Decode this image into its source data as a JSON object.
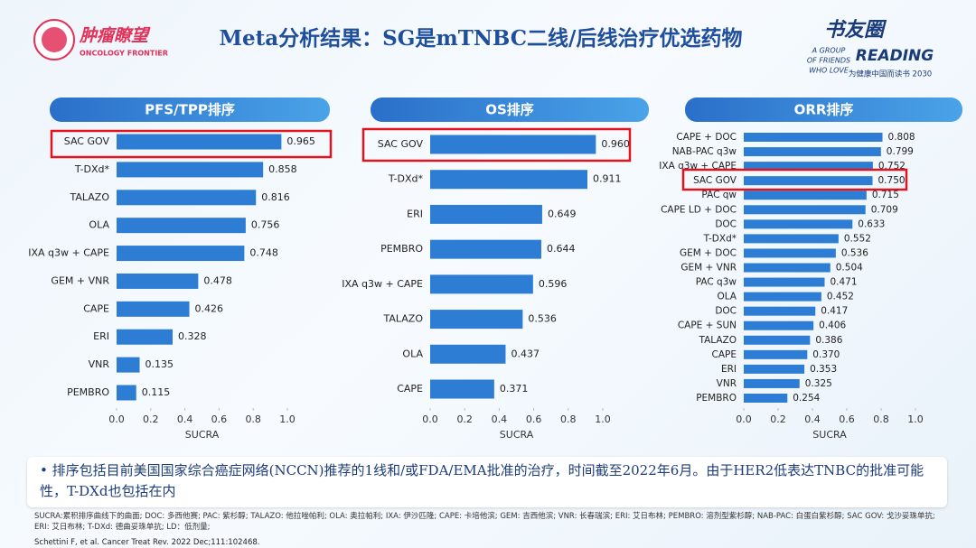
{
  "header": {
    "title": "Meta分析结果：SG是mTNBC二线/后线治疗优选药物",
    "logo_left": "肿瘤瞭望",
    "logo_left_sub": "ONCOLOGY FRONTIER",
    "logo_right": "书友圈",
    "logo_right_sub": "READING",
    "logo_right_line1": "A GROUP",
    "logo_right_line2": "OF FRIENDS",
    "logo_right_line3": "WHO LOVE",
    "logo_right_tag": "为健康中国而读书 2030"
  },
  "chart_data": [
    {
      "type": "bar",
      "orientation": "horizontal",
      "title": "PFS/TPP排序",
      "x_label": "SUCRA",
      "color": "#2e7dd4",
      "highlight_index": 0,
      "categories": [
        "SAC GOV",
        "T-DXd*",
        "TALAZO",
        "OLA",
        "IXA q3w + CAPE",
        "GEM + VNR",
        "CAPE",
        "ERI",
        "VNR",
        "PEMBRO"
      ],
      "values": [
        0.965,
        0.858,
        0.816,
        0.756,
        0.748,
        0.478,
        0.426,
        0.328,
        0.135,
        0.115
      ],
      "xlim": [
        0,
        1
      ],
      "xticks": [
        {
          "value": 0,
          "label": "0.0"
        },
        0.2,
        0.4,
        0.6,
        0.8,
        {
          "value": 1,
          "label": "1.0"
        }
      ]
    },
    {
      "type": "bar",
      "orientation": "horizontal",
      "title": "OS排序",
      "x_label": "SUCRA",
      "color": "#2e7dd4",
      "highlight_index": 0,
      "categories": [
        "SAC GOV",
        "T-DXd*",
        "ERI",
        "PEMBRO",
        "IXA q3w + CAPE",
        "TALAZO",
        "OLA",
        "CAPE"
      ],
      "values": [
        0.96,
        0.911,
        0.649,
        0.644,
        0.596,
        0.536,
        0.437,
        0.371
      ],
      "value_labels": [
        "0.960",
        "0.911",
        "0.649",
        "0.644",
        "0.596",
        "0.536",
        "0.437",
        "0.371"
      ],
      "xlim": [
        0,
        1
      ],
      "xticks": [
        {
          "value": 0,
          "label": "0.0"
        },
        0.2,
        0.4,
        0.6,
        0.8,
        {
          "value": 1,
          "label": "1.0"
        }
      ]
    },
    {
      "type": "bar",
      "orientation": "horizontal",
      "title": "ORR排序",
      "x_label": "SUCRA",
      "color": "#2e7dd4",
      "highlight_index": 3,
      "categories": [
        "CAPE + DOC",
        "NAB-PAC q3w",
        "IXA q3w + CAPE",
        "SAC GOV",
        "PAC qw",
        "CAPE LD + DOC",
        "DOC",
        "T-DXd*",
        "GEM + DOC",
        "GEM + VNR",
        "PAC q3w",
        "OLA",
        "DOC",
        "CAPE + SUN",
        "TALAZO",
        "CAPE",
        "ERI",
        "VNR",
        "PEMBRO"
      ],
      "values": [
        0.808,
        0.799,
        0.752,
        0.75,
        0.715,
        0.709,
        0.633,
        0.552,
        0.536,
        0.504,
        0.471,
        0.452,
        0.417,
        0.406,
        0.386,
        0.37,
        0.353,
        0.325,
        0.254
      ],
      "value_labels": [
        "0.808",
        "0.799",
        "0.752",
        "0.750",
        "0.715",
        "0.709",
        "0.633",
        "0.552",
        "0.536",
        "0.504",
        "0.471",
        "0.452",
        "0.417",
        "0.406",
        "0.386",
        "0.370",
        "0.353",
        "0.325",
        "0.254"
      ],
      "xlim": [
        0,
        1
      ],
      "xticks": [
        {
          "value": 0,
          "label": "0.0"
        },
        0.2,
        0.4,
        0.6,
        0.8,
        {
          "value": 1,
          "label": "1.0"
        }
      ]
    }
  ],
  "note": {
    "bullet": "排序包括目前美国国家综合癌症网络(NCCN)推荐的1线和/或FDA/EMA批准的治疗，时间截至2022年6月。由于HER2低表达TNBC的批准可能性，T-DXd也包括在内",
    "footnote": "SUCRA:累积排序曲线下的曲面; DOC: 多西他赛; PAC: 紫杉醇; TALAZO: 他拉唑帕利; OLA: 奥拉帕利; IXA: 伊沙匹隆; CAPE: 卡培他滨; GEM: 吉西他滨; VNR: 长春瑞滨; ERI: 艾日布林; PEMBRO: 溶剂型紫杉醇; NAB-PAC: 白蛋白紫杉醇; SAC GOV: 戈沙妥珠单抗; ERI: 艾日布林; T-DXd: 德曲妥珠单抗; LD：低剂量;",
    "reference": "Schettini F, et al. Cancer Treat Rev. 2022 Dec;111:102468."
  }
}
